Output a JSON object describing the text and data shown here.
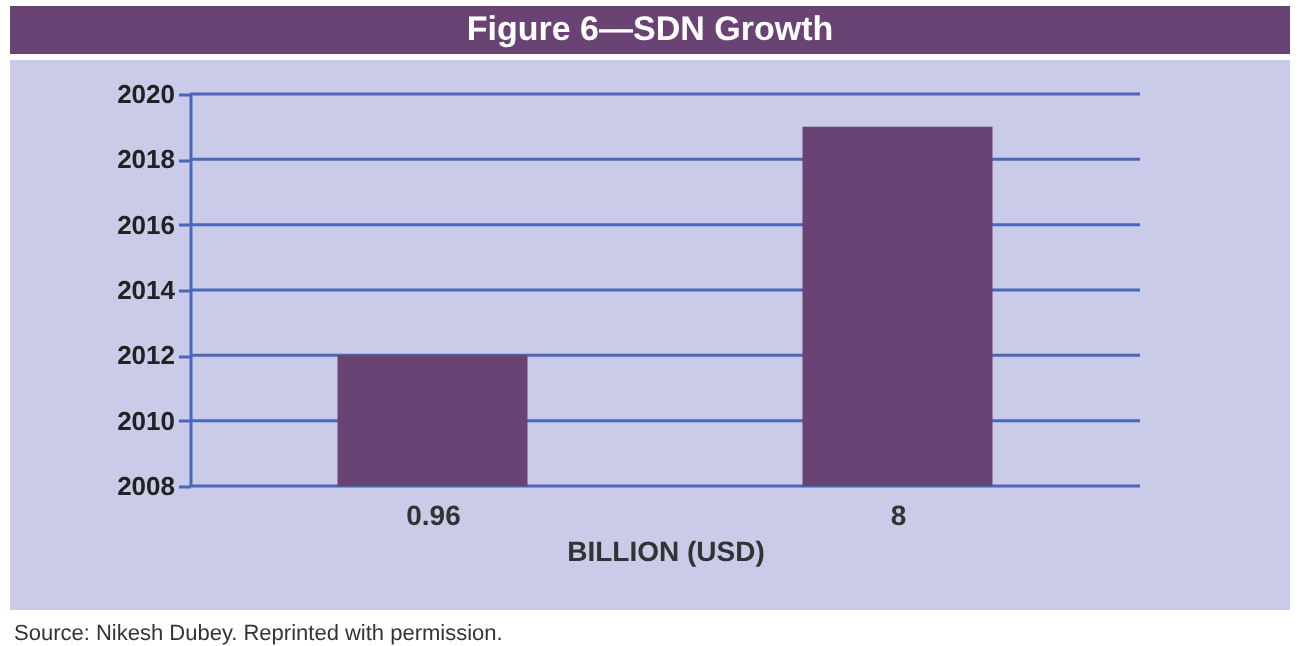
{
  "chart_data": {
    "type": "bar",
    "title": "Figure 6—SDN Growth",
    "categories": [
      "0.96",
      "8"
    ],
    "values": [
      2012.0,
      2019.0
    ],
    "color": "#684373",
    "xlabel": "BILLION (USD)",
    "ylim": [
      2008,
      2020
    ],
    "yticks": [
      2008,
      2010,
      2012,
      2014,
      2016,
      2018,
      2020
    ],
    "grid": "y",
    "annotations": [
      "Source: Nikesh Dubey. Reprinted with permission."
    ]
  }
}
